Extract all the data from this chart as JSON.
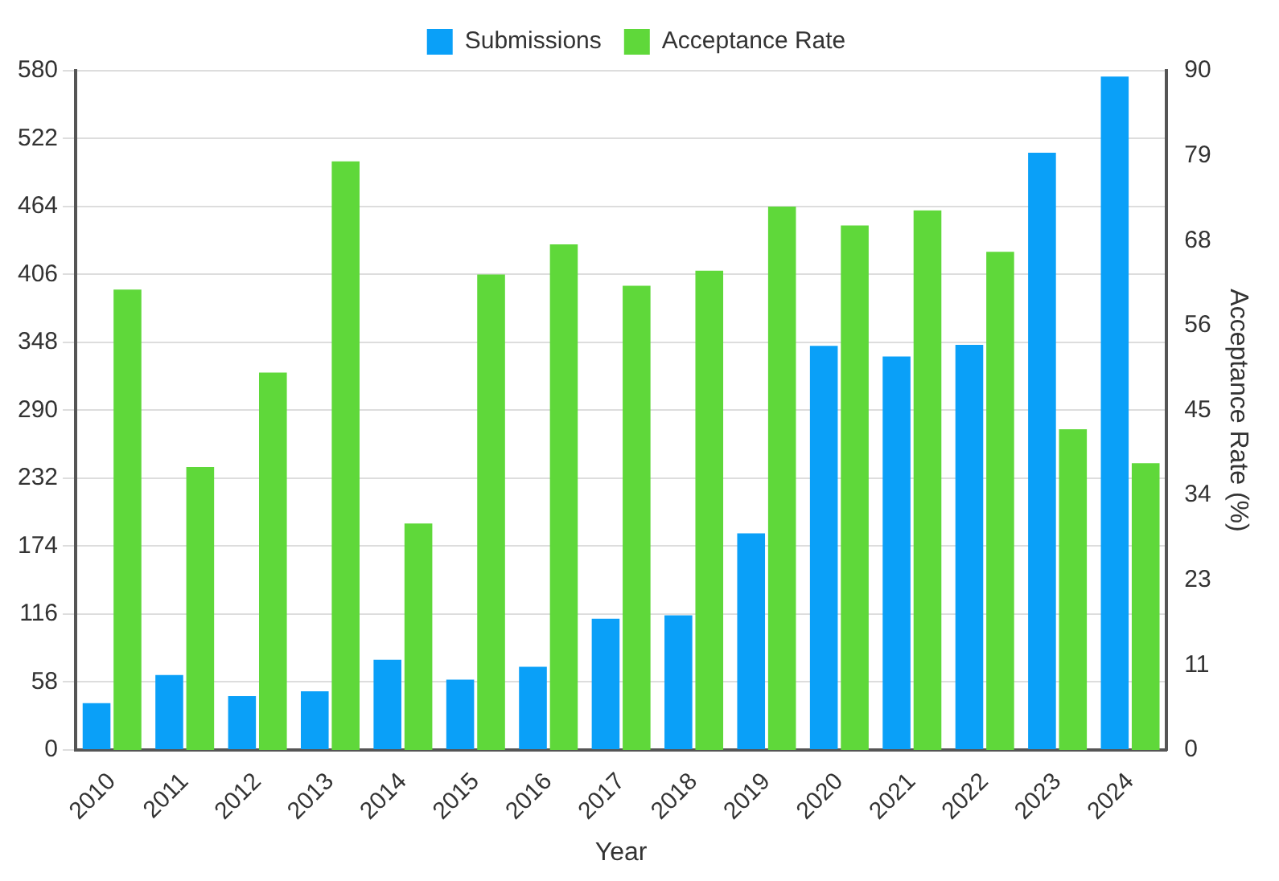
{
  "chart_data": {
    "type": "bar",
    "xlabel": "Year",
    "y2label": "Acceptance Rate (%)",
    "categories": [
      "2010",
      "2011",
      "2012",
      "2013",
      "2014",
      "2015",
      "2016",
      "2017",
      "2018",
      "2019",
      "2020",
      "2021",
      "2022",
      "2023",
      "2024"
    ],
    "series": [
      {
        "name": "Submissions",
        "color": "#0aa0f8",
        "values": [
          40,
          64,
          46,
          50,
          77,
          60,
          71,
          112,
          115,
          185,
          345,
          336,
          346,
          510,
          575
        ]
      },
      {
        "name": "Acceptance Rate",
        "color": "#5fd83a",
        "axis": "y2",
        "values": [
          61,
          37.5,
          50,
          78,
          30,
          63,
          67,
          61.5,
          63.5,
          72,
          69.5,
          71.5,
          66,
          42.5,
          38
        ]
      }
    ],
    "ylim": [
      0,
      580
    ],
    "yticks": [
      0,
      58,
      116,
      174,
      232,
      290,
      348,
      406,
      464,
      522,
      580
    ],
    "y2lim": [
      0,
      90
    ],
    "y2ticks": [
      0,
      {
        "value": 11.25,
        "label": "11"
      },
      {
        "value": 22.5,
        "label": "23"
      },
      {
        "value": 33.75,
        "label": "34"
      },
      45,
      {
        "value": 56.25,
        "label": "56"
      },
      {
        "value": 67.5,
        "label": "68"
      },
      {
        "value": 78.75,
        "label": "79"
      },
      90
    ],
    "grid": "y",
    "legend": "top"
  }
}
